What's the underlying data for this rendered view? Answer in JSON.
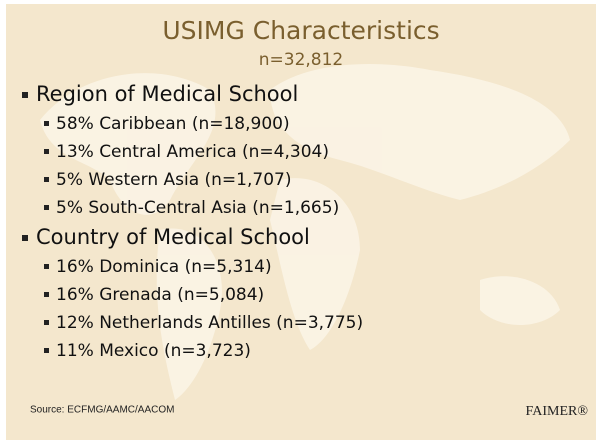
{
  "title": "USIMG Characteristics",
  "subtitle": "n=32,812",
  "sections": [
    {
      "heading": "Region of Medical School",
      "items": [
        "58% Caribbean (n=18,900)",
        "13% Central America (n=4,304)",
        "5% Western Asia (n=1,707)",
        "5% South-Central Asia (n=1,665)"
      ]
    },
    {
      "heading": "Country of Medical School",
      "items": [
        "16% Dominica (n=5,314)",
        "16% Grenada (n=5,084)",
        "12% Netherlands Antilles (n=3,775)",
        "11% Mexico (n=3,723)"
      ]
    }
  ],
  "source": "Source: ECFMG/AAMC/AACOM",
  "brand": "FAIMER®"
}
